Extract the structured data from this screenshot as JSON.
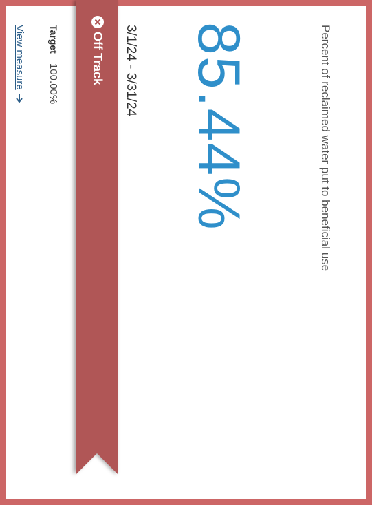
{
  "title": "Percent of reclaimed water put to beneficial use",
  "value": "85.44%",
  "date_range": "3/1/24 - 3/31/24",
  "status": "Off Track",
  "target": {
    "label": "Target",
    "value": "100.00%"
  },
  "link": "View measure"
}
